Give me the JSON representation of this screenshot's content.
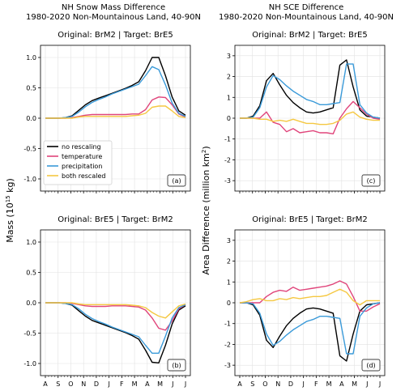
{
  "header": {
    "left_title_line1": "NH Snow Mass Difference",
    "left_title_line2": "1980-2020 Non-Mountainous Land, 40-90N",
    "right_title_line1": "NH SCE Difference",
    "right_title_line2": "1980-2020 Non-Mountainous Land, 40-90N"
  },
  "colors": {
    "no_rescaling": "#000000",
    "temperature": "#e0457b",
    "precipitation": "#3a9ad9",
    "both_rescaled": "#f5c842"
  },
  "legend": [
    "no rescaling",
    "temperature",
    "precipitation",
    "both rescaled"
  ],
  "chart_data": [
    {
      "type": "line",
      "panel_label": "(a)",
      "subtitle": "Original: BrM2 | Target: BrE5",
      "ylabel": "Mass (10",
      "ylabel_sup": "15",
      "ylabel_end": " kg)",
      "ylim": [
        -1.2,
        1.2
      ],
      "yticks": [
        "-1.0",
        "-0.5",
        "0.0",
        "0.5",
        "1.0"
      ],
      "ytick_values": [
        -1.0,
        -0.5,
        0.0,
        0.5,
        1.0
      ],
      "x_labels": [
        "A",
        "S",
        "O",
        "N",
        "D",
        "J",
        "F",
        "M",
        "A",
        "M",
        "J",
        "J"
      ],
      "grid": true,
      "series": [
        {
          "key": "no_rescaling",
          "values": [
            0,
            0,
            0,
            0.01,
            0.04,
            0.13,
            0.22,
            0.29,
            0.33,
            0.37,
            0.41,
            0.45,
            0.49,
            0.54,
            0.6,
            0.78,
            1.0,
            1.0,
            0.7,
            0.35,
            0.12,
            0.05
          ]
        },
        {
          "key": "temperature",
          "values": [
            0,
            0,
            0,
            0,
            0.01,
            0.03,
            0.05,
            0.06,
            0.06,
            0.06,
            0.06,
            0.06,
            0.06,
            0.07,
            0.07,
            0.14,
            0.3,
            0.35,
            0.34,
            0.22,
            0.07,
            0.02
          ]
        },
        {
          "key": "precipitation",
          "values": [
            0,
            0,
            0,
            0.01,
            0.03,
            0.1,
            0.19,
            0.26,
            0.31,
            0.35,
            0.4,
            0.44,
            0.48,
            0.52,
            0.56,
            0.7,
            0.85,
            0.8,
            0.55,
            0.25,
            0.08,
            0.03
          ]
        },
        {
          "key": "both_rescaled",
          "values": [
            0,
            0,
            0,
            0,
            0,
            0.02,
            0.03,
            0.03,
            0.03,
            0.03,
            0.03,
            0.03,
            0.03,
            0.04,
            0.05,
            0.08,
            0.18,
            0.2,
            0.2,
            0.12,
            0.03,
            0.01
          ]
        }
      ]
    },
    {
      "type": "line",
      "panel_label": "(c)",
      "subtitle": "Original: BrM2 | Target: BrE5",
      "ylabel": "Area Difference (million km",
      "ylabel_sup": "2",
      "ylabel_end": ")",
      "ylim": [
        -3.5,
        3.5
      ],
      "yticks": [
        "-3",
        "-2",
        "-1",
        "0",
        "1",
        "2",
        "3"
      ],
      "ytick_values": [
        -3,
        -2,
        -1,
        0,
        1,
        2,
        3
      ],
      "x_labels": [
        "A",
        "S",
        "O",
        "N",
        "D",
        "J",
        "F",
        "M",
        "A",
        "M",
        "J",
        "J"
      ],
      "grid": true,
      "series": [
        {
          "key": "no_rescaling",
          "values": [
            0,
            0,
            0.1,
            0.6,
            1.8,
            2.15,
            1.6,
            1.1,
            0.75,
            0.5,
            0.3,
            0.25,
            0.3,
            0.4,
            0.5,
            2.55,
            2.8,
            1.5,
            0.4,
            0.1,
            0.05,
            0.0
          ]
        },
        {
          "key": "temperature",
          "values": [
            0,
            0,
            0,
            0,
            0.3,
            -0.2,
            -0.3,
            -0.65,
            -0.5,
            -0.7,
            -0.65,
            -0.6,
            -0.7,
            -0.7,
            -0.75,
            0.0,
            0.45,
            0.8,
            0.5,
            0.2,
            0.0,
            -0.05
          ]
        },
        {
          "key": "precipitation",
          "values": [
            0,
            0,
            0.05,
            0.5,
            1.5,
            2.05,
            1.85,
            1.55,
            1.3,
            1.1,
            0.9,
            0.8,
            0.65,
            0.65,
            0.7,
            0.75,
            2.6,
            2.6,
            0.65,
            0.25,
            0.05,
            0.0
          ]
        },
        {
          "key": "both_rescaled",
          "values": [
            0,
            0,
            0,
            -0.05,
            -0.05,
            -0.15,
            -0.1,
            -0.15,
            -0.05,
            -0.15,
            -0.25,
            -0.25,
            -0.3,
            -0.3,
            -0.25,
            -0.1,
            0.2,
            0.3,
            0.05,
            -0.05,
            -0.1,
            -0.1
          ]
        }
      ]
    },
    {
      "type": "line",
      "panel_label": "(b)",
      "subtitle": "Original: BrE5 | Target: BrM2",
      "ylim": [
        -1.2,
        1.2
      ],
      "yticks": [
        "-1.0",
        "-0.5",
        "0.0",
        "0.5",
        "1.0"
      ],
      "ytick_values": [
        -1.0,
        -0.5,
        0.0,
        0.5,
        1.0
      ],
      "x_labels": [
        "A",
        "S",
        "O",
        "N",
        "D",
        "J",
        "F",
        "M",
        "A",
        "M",
        "J",
        "J"
      ],
      "grid": true,
      "series": [
        {
          "key": "no_rescaling",
          "values": [
            0,
            0,
            0,
            -0.01,
            -0.04,
            -0.13,
            -0.22,
            -0.29,
            -0.33,
            -0.37,
            -0.41,
            -0.45,
            -0.49,
            -0.54,
            -0.6,
            -0.78,
            -0.98,
            -0.99,
            -0.7,
            -0.35,
            -0.12,
            -0.05
          ]
        },
        {
          "key": "temperature",
          "values": [
            0,
            0,
            0,
            0,
            -0.01,
            -0.03,
            -0.05,
            -0.06,
            -0.06,
            -0.06,
            -0.05,
            -0.05,
            -0.05,
            -0.06,
            -0.07,
            -0.12,
            -0.25,
            -0.42,
            -0.45,
            -0.3,
            -0.1,
            -0.03
          ]
        },
        {
          "key": "precipitation",
          "values": [
            0,
            0,
            0,
            -0.01,
            -0.03,
            -0.1,
            -0.19,
            -0.26,
            -0.31,
            -0.35,
            -0.4,
            -0.44,
            -0.48,
            -0.52,
            -0.56,
            -0.7,
            -0.83,
            -0.83,
            -0.55,
            -0.25,
            -0.08,
            -0.03
          ]
        },
        {
          "key": "both_rescaled",
          "values": [
            0,
            0,
            0,
            0,
            0,
            -0.02,
            -0.03,
            -0.03,
            -0.03,
            -0.03,
            -0.03,
            -0.03,
            -0.03,
            -0.04,
            -0.05,
            -0.08,
            -0.16,
            -0.22,
            -0.25,
            -0.15,
            -0.05,
            -0.02
          ]
        }
      ]
    },
    {
      "type": "line",
      "panel_label": "(d)",
      "subtitle": "Original: BrE5 | Target: BrM2",
      "ylim": [
        -3.5,
        3.5
      ],
      "yticks": [
        "-3",
        "-2",
        "-1",
        "0",
        "1",
        "2",
        "3"
      ],
      "ytick_values": [
        -3,
        -2,
        -1,
        0,
        1,
        2,
        3
      ],
      "x_labels": [
        "A",
        "S",
        "O",
        "N",
        "D",
        "J",
        "F",
        "M",
        "A",
        "M",
        "J",
        "J"
      ],
      "grid": true,
      "series": [
        {
          "key": "no_rescaling",
          "values": [
            0,
            0,
            -0.1,
            -0.6,
            -1.8,
            -2.15,
            -1.6,
            -1.1,
            -0.75,
            -0.5,
            -0.3,
            -0.25,
            -0.3,
            -0.4,
            -0.5,
            -2.55,
            -2.8,
            -1.5,
            -0.4,
            -0.1,
            -0.05,
            0.0
          ]
        },
        {
          "key": "temperature",
          "values": [
            0,
            0,
            0,
            0,
            0.3,
            0.5,
            0.6,
            0.55,
            0.75,
            0.6,
            0.65,
            0.7,
            0.75,
            0.8,
            0.9,
            1.05,
            0.9,
            0.3,
            -0.4,
            -0.4,
            -0.2,
            -0.05
          ]
        },
        {
          "key": "precipitation",
          "values": [
            0,
            0,
            -0.05,
            -0.5,
            -1.5,
            -2.05,
            -1.85,
            -1.55,
            -1.3,
            -1.1,
            -0.9,
            -0.8,
            -0.65,
            -0.65,
            -0.7,
            -0.75,
            -2.45,
            -2.45,
            -0.65,
            -0.25,
            -0.05,
            0.0
          ]
        },
        {
          "key": "both_rescaled",
          "values": [
            0,
            0.05,
            0.15,
            0.2,
            0.1,
            0.1,
            0.2,
            0.15,
            0.25,
            0.2,
            0.25,
            0.3,
            0.3,
            0.35,
            0.5,
            0.65,
            0.5,
            0.1,
            -0.1,
            0.1,
            0.1,
            0.1
          ]
        }
      ]
    }
  ]
}
